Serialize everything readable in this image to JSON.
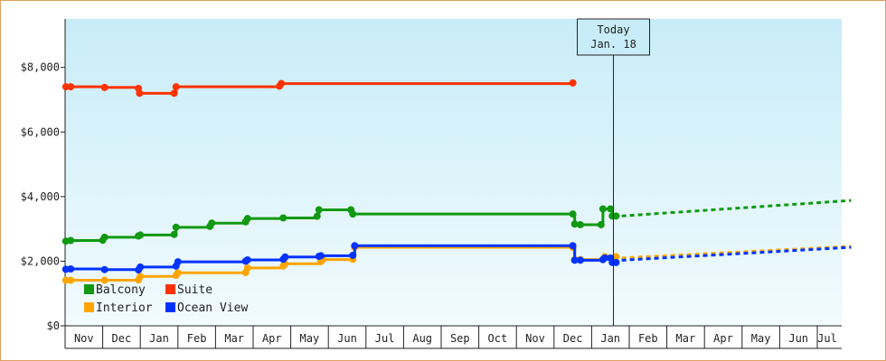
{
  "chart_data": {
    "type": "line",
    "title": "",
    "xlabel": "",
    "ylabel": "",
    "ylim": [
      0,
      9500
    ],
    "y_ticks": [
      0,
      2000,
      4000,
      6000,
      8000
    ],
    "y_tick_labels": [
      "$0",
      "$2,000",
      "$4,000",
      "$6,000",
      "$8,000"
    ],
    "x_tick_labels": [
      "Nov",
      "Dec",
      "Jan",
      "Feb",
      "Mar",
      "Apr",
      "May",
      "Jun",
      "Jul",
      "Aug",
      "Sep",
      "Oct",
      "Nov",
      "Dec",
      "Jan",
      "Feb",
      "Mar",
      "Apr",
      "May",
      "Jun",
      "Jul"
    ],
    "x_unit": "months since start of first Nov (0 = Nov 1)",
    "grid": false,
    "background": {
      "top": "#c8ecf8",
      "bottom": "#f2fbfe"
    },
    "today_marker": {
      "line1": "Today",
      "line2": "Jan. 18",
      "x": 14.58
    },
    "legend": {
      "position": "bottom-left",
      "entries": [
        {
          "label": "Balcony",
          "color": "#119911"
        },
        {
          "label": "Suite",
          "color": "#ff3300"
        },
        {
          "label": "Interior",
          "color": "#ffa500"
        },
        {
          "label": "Ocean View",
          "color": "#0033ff"
        }
      ]
    },
    "series": [
      {
        "name": "Suite",
        "color": "#ff3300",
        "points": [
          [
            0.02,
            7400
          ],
          [
            0.15,
            7400
          ],
          [
            1.05,
            7380
          ],
          [
            1.95,
            7350
          ],
          [
            1.98,
            7200
          ],
          [
            2.9,
            7200
          ],
          [
            2.95,
            7400
          ],
          [
            5.7,
            7420
          ],
          [
            5.75,
            7500
          ],
          [
            13.5,
            7520
          ]
        ],
        "forecast": []
      },
      {
        "name": "Balcony",
        "color": "#119911",
        "points": [
          [
            0.02,
            2620
          ],
          [
            0.15,
            2640
          ],
          [
            1.0,
            2650
          ],
          [
            1.05,
            2740
          ],
          [
            1.95,
            2780
          ],
          [
            2.0,
            2810
          ],
          [
            2.9,
            2830
          ],
          [
            2.95,
            3050
          ],
          [
            3.85,
            3080
          ],
          [
            3.9,
            3180
          ],
          [
            4.8,
            3220
          ],
          [
            4.85,
            3320
          ],
          [
            5.8,
            3340
          ],
          [
            6.7,
            3390
          ],
          [
            6.75,
            3590
          ],
          [
            7.6,
            3590
          ],
          [
            7.65,
            3460
          ],
          [
            13.5,
            3460
          ],
          [
            13.55,
            3150
          ],
          [
            13.7,
            3130
          ],
          [
            14.25,
            3130
          ],
          [
            14.3,
            3620
          ],
          [
            14.5,
            3620
          ],
          [
            14.55,
            3400
          ],
          [
            14.65,
            3400
          ]
        ],
        "forecast": [
          [
            14.8,
            3400
          ],
          [
            20.9,
            3880
          ]
        ]
      },
      {
        "name": "Interior",
        "color": "#ffa500",
        "points": [
          [
            0.02,
            1410
          ],
          [
            0.15,
            1410
          ],
          [
            1.05,
            1410
          ],
          [
            1.95,
            1420
          ],
          [
            2.0,
            1530
          ],
          [
            2.95,
            1560
          ],
          [
            3.0,
            1640
          ],
          [
            4.8,
            1650
          ],
          [
            4.85,
            1790
          ],
          [
            5.8,
            1850
          ],
          [
            5.85,
            1920
          ],
          [
            6.8,
            1990
          ],
          [
            6.85,
            2050
          ],
          [
            7.65,
            2060
          ],
          [
            7.7,
            2430
          ],
          [
            13.5,
            2430
          ],
          [
            13.55,
            2050
          ],
          [
            13.7,
            2050
          ],
          [
            14.3,
            2050
          ],
          [
            14.35,
            2140
          ],
          [
            14.65,
            2140
          ]
        ],
        "forecast": [
          [
            14.8,
            2100
          ],
          [
            20.9,
            2460
          ]
        ]
      },
      {
        "name": "Ocean View",
        "color": "#0033ff",
        "points": [
          [
            0.02,
            1750
          ],
          [
            0.15,
            1760
          ],
          [
            1.05,
            1740
          ],
          [
            1.95,
            1730
          ],
          [
            2.0,
            1820
          ],
          [
            2.95,
            1850
          ],
          [
            3.0,
            1980
          ],
          [
            4.8,
            2000
          ],
          [
            4.85,
            2040
          ],
          [
            5.8,
            2060
          ],
          [
            5.85,
            2130
          ],
          [
            6.75,
            2150
          ],
          [
            6.8,
            2170
          ],
          [
            7.65,
            2180
          ],
          [
            7.7,
            2480
          ],
          [
            13.5,
            2480
          ],
          [
            13.55,
            2030
          ],
          [
            13.7,
            2030
          ],
          [
            14.3,
            2050
          ],
          [
            14.35,
            2100
          ],
          [
            14.5,
            2100
          ],
          [
            14.55,
            1960
          ],
          [
            14.65,
            1960
          ]
        ],
        "forecast": [
          [
            14.8,
            2030
          ],
          [
            20.9,
            2430
          ]
        ]
      }
    ]
  }
}
